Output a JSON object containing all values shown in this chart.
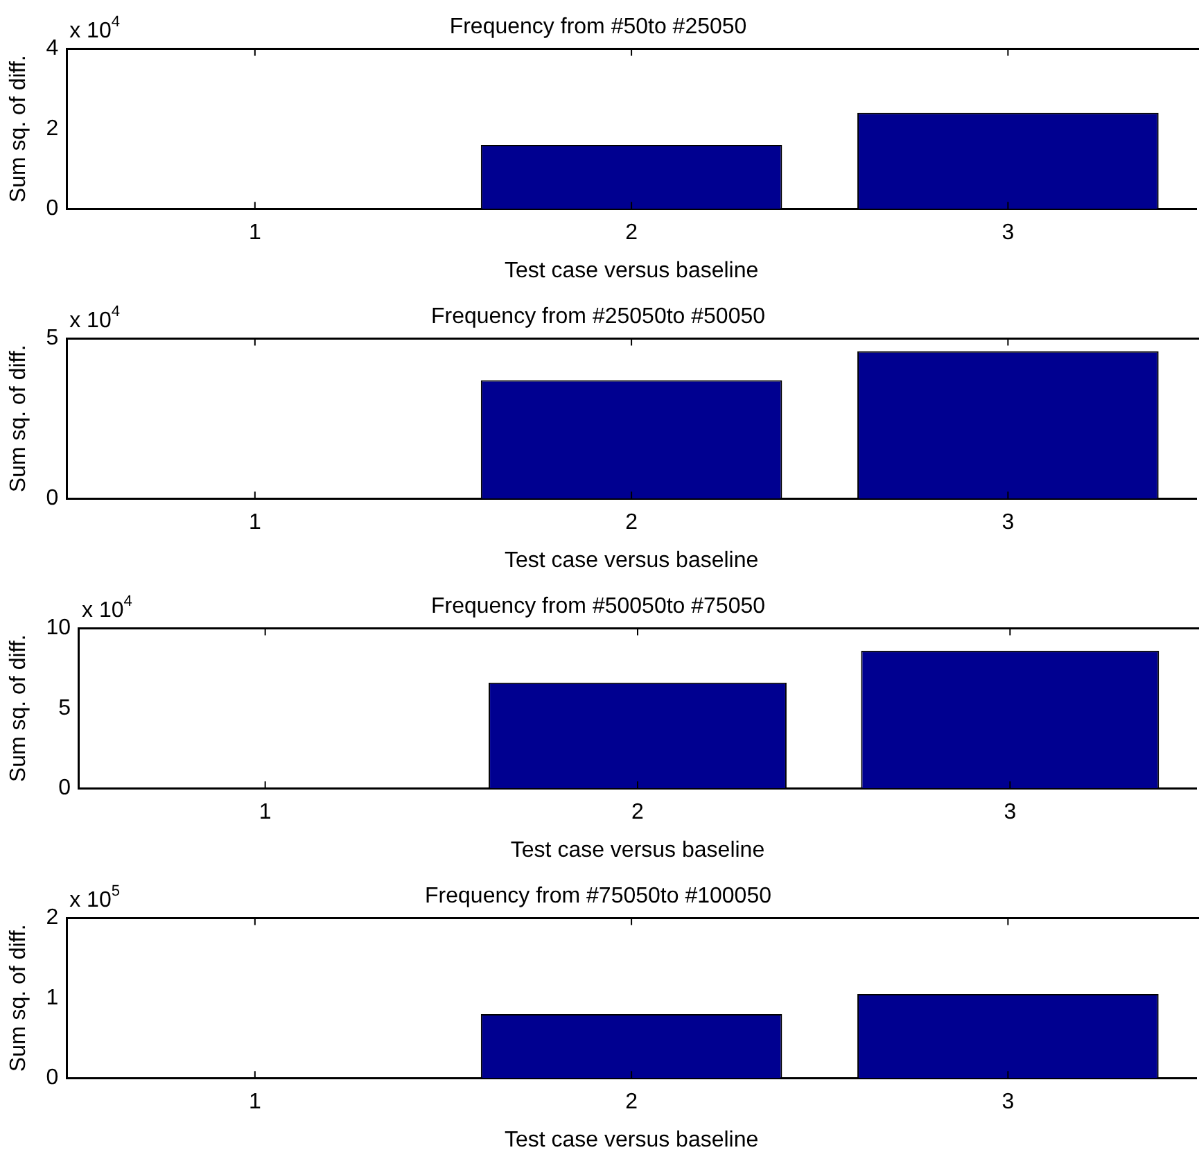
{
  "chart_data": [
    {
      "type": "bar",
      "title": "Frequency from #50to #25050",
      "xlabel": "Test case versus baseline",
      "ylabel": "Sum sq. of diff.",
      "annotations": [
        "x 10$^{4}$"
      ],
      "categories": [
        "1",
        "2",
        "3"
      ],
      "values": [
        0,
        1.6,
        2.4
      ],
      "color": "#000090",
      "ylim": [
        0,
        4
      ],
      "yticks": [
        0,
        2,
        4
      ],
      "grid": false
    },
    {
      "type": "bar",
      "title": "Frequency from #25050to #50050",
      "xlabel": "Test case versus baseline",
      "ylabel": "Sum sq. of diff.",
      "annotations": [
        "x 10$^{4}$"
      ],
      "categories": [
        "1",
        "2",
        "3"
      ],
      "values": [
        0,
        3.7,
        4.6
      ],
      "color": "#000090",
      "ylim": [
        0,
        5
      ],
      "yticks": [
        0,
        5
      ],
      "grid": false
    },
    {
      "type": "bar",
      "title": "Frequency from #50050to #75050",
      "xlabel": "Test case versus baseline",
      "ylabel": "Sum sq. of diff.",
      "annotations": [
        "x 10$^{4}$"
      ],
      "categories": [
        "1",
        "2",
        "3"
      ],
      "values": [
        0,
        6.6,
        8.6
      ],
      "color": "#000090",
      "ylim": [
        0,
        10
      ],
      "yticks": [
        0,
        5,
        10
      ],
      "grid": false
    },
    {
      "type": "bar",
      "title": "Frequency from #75050to #100050",
      "xlabel": "Test case versus baseline",
      "ylabel": "Sum sq. of diff.",
      "annotations": [
        "x 10$^{5}$"
      ],
      "categories": [
        "1",
        "2",
        "3"
      ],
      "values": [
        0,
        0.8,
        1.05
      ],
      "color": "#000090",
      "ylim": [
        0,
        2
      ],
      "yticks": [
        0,
        1,
        2
      ],
      "grid": false
    }
  ]
}
